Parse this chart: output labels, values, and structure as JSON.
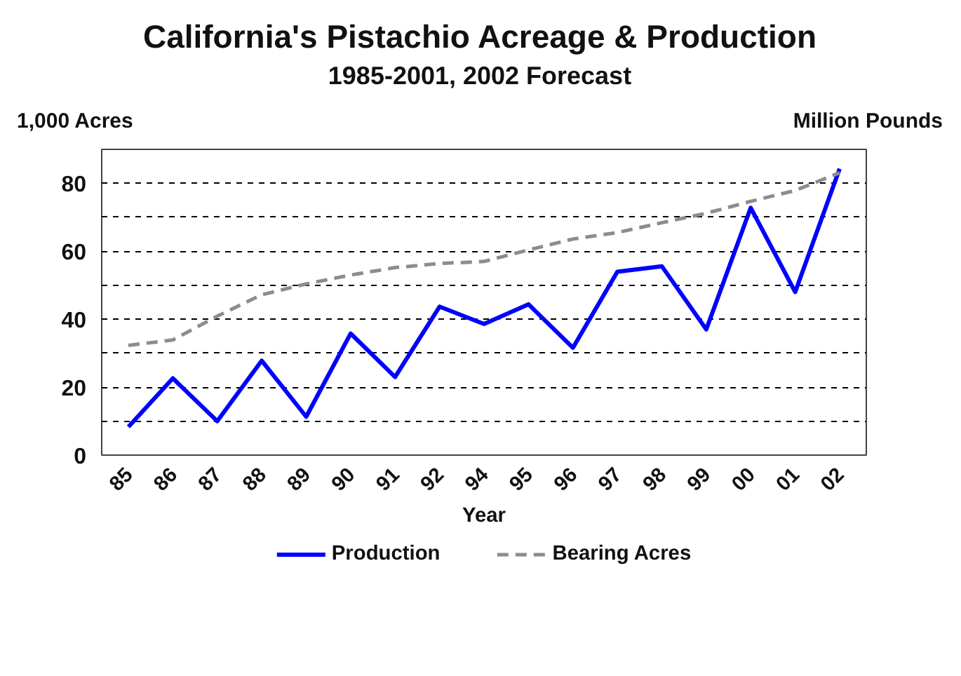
{
  "chart_data": {
    "type": "line",
    "title": "California's Pistachio Acreage & Production",
    "subtitle": "1985-2001, 2002 Forecast",
    "xlabel": "Year",
    "ylabel": "1,000 Acres",
    "y2label": "Million Pounds",
    "categories": [
      "85",
      "86",
      "87",
      "88",
      "89",
      "90",
      "91",
      "92",
      "94",
      "95",
      "96",
      "97",
      "98",
      "99",
      "00",
      "01",
      "02"
    ],
    "series": [
      {
        "name": "Production",
        "color": "#0000ff",
        "line_style": "solid",
        "values": [
          8.3,
          22.6,
          10,
          27.8,
          11.3,
          35.8,
          23,
          43.7,
          38.6,
          44.4,
          31.6,
          54,
          55.6,
          37,
          72.8,
          48,
          84.3
        ]
      },
      {
        "name": "Bearing Acres",
        "color": "#8c8c8c",
        "line_style": "dashed",
        "values": [
          32.3,
          33.9,
          40.9,
          47.2,
          50.4,
          53,
          55.2,
          56.4,
          57,
          60.4,
          63.6,
          65.5,
          68.4,
          71.2,
          74.7,
          77.9,
          83.1
        ]
      }
    ],
    "ylim": [
      0,
      90
    ],
    "yticks": [
      0,
      {
        "value": 10,
        "label": null
      },
      20,
      {
        "value": 30,
        "label": null
      },
      40,
      {
        "value": 50,
        "label": null
      },
      60,
      {
        "value": 70,
        "label": null
      },
      80
    ],
    "grid": "y",
    "legend": "bottom",
    "marker": "none"
  }
}
